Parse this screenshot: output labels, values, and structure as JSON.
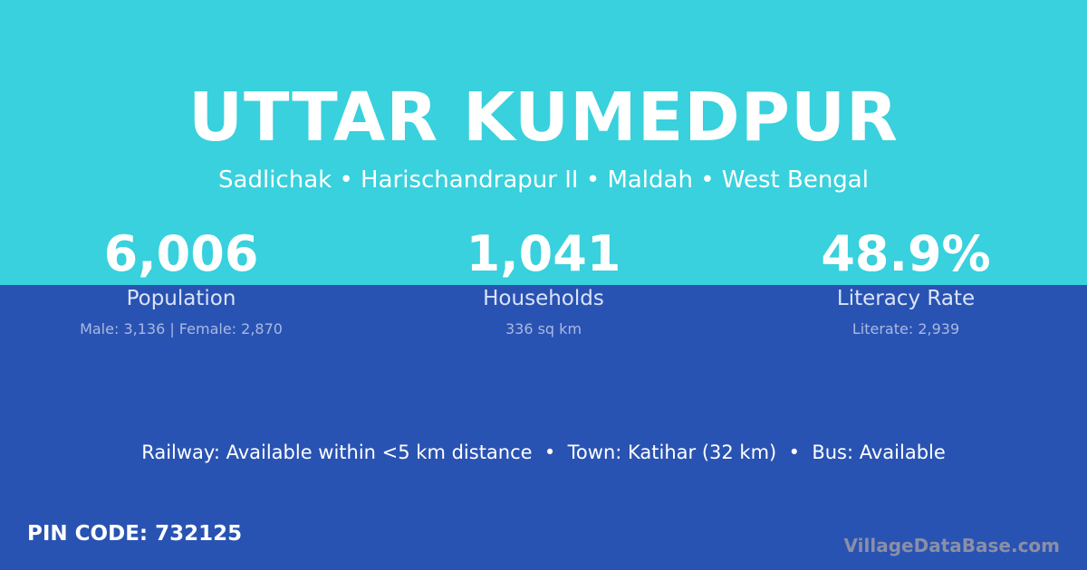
{
  "colors": {
    "top_background": "#38d1dd",
    "bottom_background": "#2953b2"
  },
  "title": "UTTAR KUMEDPUR",
  "subtitle": "Sadlichak • Harischandrapur II • Maldah • West Bengal",
  "stats": [
    {
      "value": "6,006",
      "label": "Population",
      "detail": "Male: 3,136 | Female: 2,870"
    },
    {
      "value": "1,041",
      "label": "Households",
      "detail": "336 sq km"
    },
    {
      "value": "48.9%",
      "label": "Literacy Rate",
      "detail": "Literate: 2,939"
    }
  ],
  "amenities": "Railway: Available within <5 km distance  •  Town: Katihar (32 km)  •  Bus: Available",
  "pin_code": "PIN CODE: 732125",
  "brand": "VillageDataBase.com"
}
